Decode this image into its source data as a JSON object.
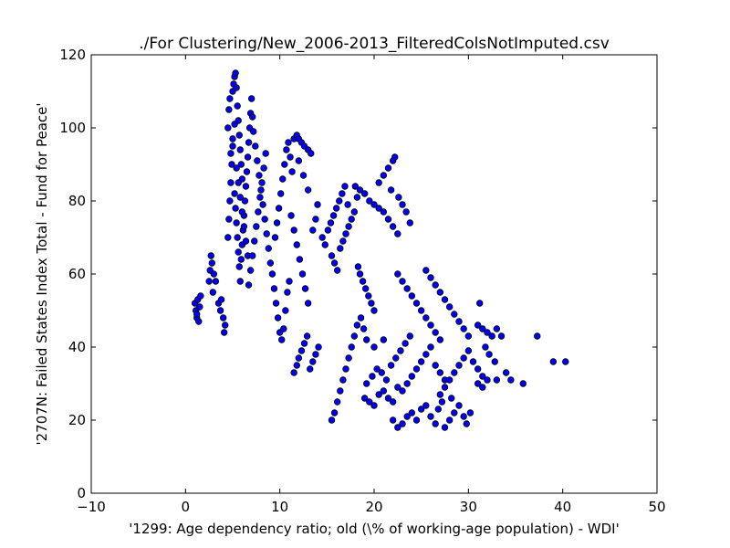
{
  "chart_data": {
    "type": "scatter",
    "title": "./For Clustering/New_2006-2013_FilteredColsNotImputed.csv",
    "xlabel": "'1299: Age dependency ratio; old  (\\% of working-age population) - WDI'",
    "ylabel": "'2707N: Failed States Index Total - Fund for Peace'",
    "xlim": [
      -10,
      50
    ],
    "ylim": [
      0,
      120
    ],
    "xticks": [
      -10,
      0,
      10,
      20,
      30,
      40,
      50
    ],
    "yticks": [
      0,
      20,
      40,
      60,
      80,
      100,
      120
    ],
    "xtick_labels": [
      "−10",
      "0",
      "10",
      "20",
      "30",
      "40",
      "50"
    ],
    "ytick_labels": [
      "0",
      "20",
      "40",
      "60",
      "80",
      "100",
      "120"
    ],
    "grid": false,
    "marker_color": "#0000ff",
    "marker_edge": "#000000",
    "series": [
      {
        "points": [
          [
            1.0,
            52
          ],
          [
            1.1,
            50
          ],
          [
            1.2,
            48
          ],
          [
            1.3,
            53
          ],
          [
            1.4,
            47
          ],
          [
            1.5,
            51
          ],
          [
            1.2,
            49
          ],
          [
            1.6,
            54
          ],
          [
            2.5,
            58
          ],
          [
            2.6,
            61
          ],
          [
            2.8,
            63
          ],
          [
            3.0,
            60
          ],
          [
            2.7,
            65
          ],
          [
            3.2,
            58
          ],
          [
            2.9,
            55
          ],
          [
            3.5,
            52
          ],
          [
            3.7,
            50
          ],
          [
            4.0,
            48
          ],
          [
            4.2,
            46
          ],
          [
            4.1,
            44
          ],
          [
            3.8,
            53
          ],
          [
            4.5,
            70
          ],
          [
            4.6,
            75
          ],
          [
            4.7,
            80
          ],
          [
            4.8,
            85
          ],
          [
            4.9,
            90
          ],
          [
            5.0,
            95
          ],
          [
            4.5,
            100
          ],
          [
            4.6,
            105
          ],
          [
            4.7,
            108
          ],
          [
            5.0,
            110
          ],
          [
            5.1,
            112
          ],
          [
            5.2,
            114
          ],
          [
            5.3,
            115
          ],
          [
            5.4,
            111
          ],
          [
            5.5,
            106
          ],
          [
            5.6,
            102
          ],
          [
            5.7,
            98
          ],
          [
            5.8,
            94
          ],
          [
            5.9,
            90
          ],
          [
            6.0,
            86
          ],
          [
            5.2,
            82
          ],
          [
            5.3,
            78
          ],
          [
            5.4,
            74
          ],
          [
            5.5,
            70
          ],
          [
            5.6,
            66
          ],
          [
            5.7,
            62
          ],
          [
            5.8,
            58
          ],
          [
            5.9,
            64
          ],
          [
            6.0,
            68
          ],
          [
            6.1,
            72
          ],
          [
            6.2,
            76
          ],
          [
            6.3,
            80
          ],
          [
            6.4,
            84
          ],
          [
            6.5,
            88
          ],
          [
            6.6,
            92
          ],
          [
            6.7,
            96
          ],
          [
            6.8,
            100
          ],
          [
            6.9,
            104
          ],
          [
            7.0,
            108
          ],
          [
            7.1,
            103
          ],
          [
            4.8,
            93
          ],
          [
            5.0,
            97
          ],
          [
            5.2,
            101
          ],
          [
            5.4,
            89
          ],
          [
            5.6,
            85
          ],
          [
            5.8,
            81
          ],
          [
            6.0,
            77
          ],
          [
            6.2,
            73
          ],
          [
            6.4,
            69
          ],
          [
            6.6,
            65
          ],
          [
            7.2,
            99
          ],
          [
            7.4,
            95
          ],
          [
            7.6,
            91
          ],
          [
            7.8,
            87
          ],
          [
            8.0,
            83
          ],
          [
            8.2,
            79
          ],
          [
            8.4,
            75
          ],
          [
            8.6,
            71
          ],
          [
            8.8,
            67
          ],
          [
            9.0,
            63
          ],
          [
            7.5,
            73
          ],
          [
            7.7,
            77
          ],
          [
            7.9,
            81
          ],
          [
            8.1,
            85
          ],
          [
            8.3,
            89
          ],
          [
            8.5,
            93
          ],
          [
            7.3,
            69
          ],
          [
            7.1,
            65
          ],
          [
            6.9,
            61
          ],
          [
            6.7,
            57
          ],
          [
            9.2,
            60
          ],
          [
            9.4,
            56
          ],
          [
            9.6,
            52
          ],
          [
            9.8,
            48
          ],
          [
            10.0,
            44
          ],
          [
            10.2,
            42
          ],
          [
            10.4,
            45
          ],
          [
            10.6,
            50
          ],
          [
            10.8,
            55
          ],
          [
            11.0,
            58
          ],
          [
            9.5,
            70
          ],
          [
            9.7,
            74
          ],
          [
            9.9,
            78
          ],
          [
            10.1,
            82
          ],
          [
            10.3,
            86
          ],
          [
            10.5,
            90
          ],
          [
            10.7,
            94
          ],
          [
            10.9,
            96
          ],
          [
            11.1,
            92
          ],
          [
            11.3,
            88
          ],
          [
            11.5,
            97
          ],
          [
            11.8,
            98
          ],
          [
            12.0,
            97
          ],
          [
            12.3,
            96
          ],
          [
            12.6,
            95
          ],
          [
            13.0,
            94
          ],
          [
            13.3,
            93
          ],
          [
            12.0,
            91
          ],
          [
            12.5,
            87
          ],
          [
            13.0,
            83
          ],
          [
            11.2,
            76
          ],
          [
            11.5,
            72
          ],
          [
            11.8,
            68
          ],
          [
            12.1,
            64
          ],
          [
            12.4,
            60
          ],
          [
            12.7,
            56
          ],
          [
            13.0,
            52
          ],
          [
            13.5,
            72
          ],
          [
            13.8,
            75
          ],
          [
            14.0,
            79
          ],
          [
            11.5,
            33
          ],
          [
            11.8,
            35
          ],
          [
            12.0,
            37
          ],
          [
            12.3,
            39
          ],
          [
            12.6,
            41
          ],
          [
            12.9,
            43
          ],
          [
            13.2,
            34
          ],
          [
            13.5,
            36
          ],
          [
            13.8,
            38
          ],
          [
            14.1,
            40
          ],
          [
            14.5,
            70
          ],
          [
            14.8,
            68
          ],
          [
            15.1,
            72
          ],
          [
            15.4,
            74
          ],
          [
            15.7,
            76
          ],
          [
            16.0,
            78
          ],
          [
            16.3,
            80
          ],
          [
            16.6,
            82
          ],
          [
            16.9,
            84
          ],
          [
            17.2,
            79
          ],
          [
            15.5,
            65
          ],
          [
            15.8,
            63
          ],
          [
            16.1,
            61
          ],
          [
            16.4,
            67
          ],
          [
            16.7,
            69
          ],
          [
            17.0,
            71
          ],
          [
            17.3,
            73
          ],
          [
            17.6,
            75
          ],
          [
            17.9,
            77
          ],
          [
            18.2,
            81
          ],
          [
            15.5,
            20
          ],
          [
            15.8,
            22
          ],
          [
            16.1,
            25
          ],
          [
            16.4,
            28
          ],
          [
            16.7,
            31
          ],
          [
            17.0,
            34
          ],
          [
            17.3,
            37
          ],
          [
            17.6,
            40
          ],
          [
            17.9,
            43
          ],
          [
            18.2,
            46
          ],
          [
            18.5,
            60
          ],
          [
            18.8,
            58
          ],
          [
            19.1,
            56
          ],
          [
            19.4,
            54
          ],
          [
            19.7,
            52
          ],
          [
            20.0,
            50
          ],
          [
            18.3,
            62
          ],
          [
            18.6,
            48
          ],
          [
            18.9,
            45
          ],
          [
            19.2,
            42
          ],
          [
            18.0,
            84
          ],
          [
            18.5,
            83
          ],
          [
            19.0,
            82
          ],
          [
            19.5,
            80
          ],
          [
            20.0,
            79
          ],
          [
            20.5,
            78
          ],
          [
            21.0,
            77
          ],
          [
            21.5,
            75
          ],
          [
            22.0,
            73
          ],
          [
            22.5,
            71
          ],
          [
            20.5,
            85
          ],
          [
            21.0,
            87
          ],
          [
            21.5,
            89
          ],
          [
            22.0,
            91
          ],
          [
            22.2,
            92
          ],
          [
            21.8,
            83
          ],
          [
            22.6,
            81
          ],
          [
            23.0,
            79
          ],
          [
            23.4,
            77
          ],
          [
            23.8,
            74
          ],
          [
            19.0,
            26
          ],
          [
            19.5,
            25
          ],
          [
            20.0,
            24
          ],
          [
            20.5,
            27
          ],
          [
            21.0,
            28
          ],
          [
            21.5,
            26
          ],
          [
            22.0,
            25
          ],
          [
            22.5,
            29
          ],
          [
            19.2,
            30
          ],
          [
            19.8,
            32
          ],
          [
            20.3,
            34
          ],
          [
            20.8,
            33
          ],
          [
            21.3,
            31
          ],
          [
            21.8,
            35
          ],
          [
            22.3,
            37
          ],
          [
            22.8,
            39
          ],
          [
            23.3,
            41
          ],
          [
            23.8,
            43
          ],
          [
            20.0,
            40
          ],
          [
            21.0,
            42
          ],
          [
            22.5,
            60
          ],
          [
            23.0,
            58
          ],
          [
            23.5,
            56
          ],
          [
            24.0,
            54
          ],
          [
            24.5,
            52
          ],
          [
            25.0,
            50
          ],
          [
            25.5,
            48
          ],
          [
            26.0,
            46
          ],
          [
            26.5,
            44
          ],
          [
            27.0,
            42
          ],
          [
            22.0,
            20
          ],
          [
            22.5,
            18
          ],
          [
            23.0,
            19
          ],
          [
            23.5,
            21
          ],
          [
            24.0,
            22
          ],
          [
            24.5,
            20
          ],
          [
            25.0,
            23
          ],
          [
            25.5,
            24
          ],
          [
            26.0,
            21
          ],
          [
            26.5,
            19
          ],
          [
            23.0,
            28
          ],
          [
            23.5,
            30
          ],
          [
            24.0,
            32
          ],
          [
            24.5,
            34
          ],
          [
            25.0,
            36
          ],
          [
            25.5,
            38
          ],
          [
            26.0,
            40
          ],
          [
            26.5,
            35
          ],
          [
            27.0,
            33
          ],
          [
            27.5,
            31
          ],
          [
            25.5,
            61
          ],
          [
            26.0,
            59
          ],
          [
            26.5,
            57
          ],
          [
            27.0,
            55
          ],
          [
            27.5,
            53
          ],
          [
            28.0,
            51
          ],
          [
            28.5,
            49
          ],
          [
            29.0,
            47
          ],
          [
            29.5,
            45
          ],
          [
            30.0,
            43
          ],
          [
            27.0,
            27
          ],
          [
            27.5,
            29
          ],
          [
            28.0,
            31
          ],
          [
            28.5,
            33
          ],
          [
            29.0,
            35
          ],
          [
            29.5,
            37
          ],
          [
            30.0,
            39
          ],
          [
            30.5,
            36
          ],
          [
            31.0,
            34
          ],
          [
            31.5,
            32
          ],
          [
            28.0,
            20
          ],
          [
            28.5,
            22
          ],
          [
            29.0,
            24
          ],
          [
            29.5,
            21
          ],
          [
            27.5,
            18
          ],
          [
            26.8,
            23
          ],
          [
            27.2,
            25
          ],
          [
            28.2,
            26
          ],
          [
            29.8,
            19
          ],
          [
            30.2,
            22
          ],
          [
            31.0,
            46
          ],
          [
            31.5,
            45
          ],
          [
            32.0,
            44
          ],
          [
            32.5,
            43
          ],
          [
            33.0,
            45
          ],
          [
            33.5,
            43
          ],
          [
            31.2,
            52
          ],
          [
            31.8,
            40
          ],
          [
            32.2,
            38
          ],
          [
            32.8,
            36
          ],
          [
            31.0,
            30
          ],
          [
            31.5,
            29
          ],
          [
            32.0,
            31
          ],
          [
            33.0,
            31
          ],
          [
            34.5,
            31
          ],
          [
            35.8,
            30
          ],
          [
            37.3,
            43
          ],
          [
            39.0,
            36
          ],
          [
            40.3,
            36
          ],
          [
            34.0,
            33
          ]
        ]
      }
    ]
  }
}
